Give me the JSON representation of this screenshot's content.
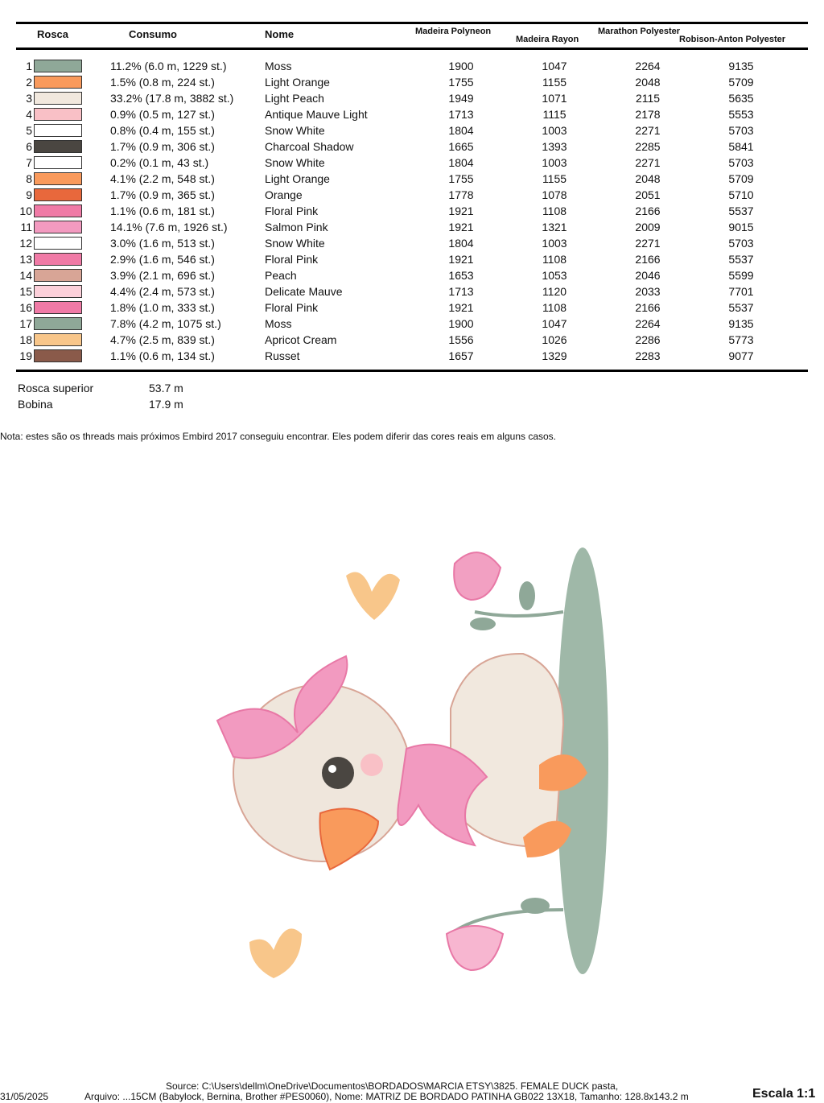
{
  "headers": {
    "rosca": "Rosca",
    "consumo": "Consumo",
    "nome": "Nome",
    "madeira_polyneon": "Madeira Polyneon",
    "madeira_rayon": "Madeira Rayon",
    "marathon": "Marathon Polyester",
    "robison": "Robison-Anton Polyester"
  },
  "rows": [
    {
      "n": "1",
      "color": "#8fa898",
      "consumo": "11.2% (6.0 m, 1229 st.)",
      "nome": "Moss",
      "mp": "1900",
      "mr": "1047",
      "ma": "2264",
      "ra": "9135"
    },
    {
      "n": "2",
      "color": "#f99a5c",
      "consumo": "1.5% (0.8 m, 224 st.)",
      "nome": "Light Orange",
      "mp": "1755",
      "mr": "1155",
      "ma": "2048",
      "ra": "5709"
    },
    {
      "n": "3",
      "color": "#f1e8de",
      "consumo": "33.2% (17.8 m, 3882 st.)",
      "nome": "Light Peach",
      "mp": "1949",
      "mr": "1071",
      "ma": "2115",
      "ra": "5635"
    },
    {
      "n": "4",
      "color": "#f9c0c6",
      "consumo": "0.9% (0.5 m, 127 st.)",
      "nome": "Antique Mauve Light",
      "mp": "1713",
      "mr": "1115",
      "ma": "2178",
      "ra": "5553"
    },
    {
      "n": "5",
      "color": "#ffffff",
      "consumo": "0.8% (0.4 m, 155 st.)",
      "nome": "Snow White",
      "mp": "1804",
      "mr": "1003",
      "ma": "2271",
      "ra": "5703"
    },
    {
      "n": "6",
      "color": "#4a4641",
      "consumo": "1.7% (0.9 m, 306 st.)",
      "nome": "Charcoal Shadow",
      "mp": "1665",
      "mr": "1393",
      "ma": "2285",
      "ra": "5841"
    },
    {
      "n": "7",
      "color": "#ffffff",
      "consumo": "0.2% (0.1 m, 43 st.)",
      "nome": "Snow White",
      "mp": "1804",
      "mr": "1003",
      "ma": "2271",
      "ra": "5703"
    },
    {
      "n": "8",
      "color": "#f99a5c",
      "consumo": "4.1% (2.2 m, 548 st.)",
      "nome": "Light Orange",
      "mp": "1755",
      "mr": "1155",
      "ma": "2048",
      "ra": "5709"
    },
    {
      "n": "9",
      "color": "#e8683c",
      "consumo": "1.7% (0.9 m, 365 st.)",
      "nome": "Orange",
      "mp": "1778",
      "mr": "1078",
      "ma": "2051",
      "ra": "5710"
    },
    {
      "n": "10",
      "color": "#f07aa6",
      "consumo": "1.1% (0.6 m, 181 st.)",
      "nome": "Floral Pink",
      "mp": "1921",
      "mr": "1108",
      "ma": "2166",
      "ra": "5537"
    },
    {
      "n": "11",
      "color": "#f39ac0",
      "consumo": "14.1% (7.6 m, 1926 st.)",
      "nome": "Salmon Pink",
      "mp": "1921",
      "mr": "1321",
      "ma": "2009",
      "ra": "9015"
    },
    {
      "n": "12",
      "color": "#ffffff",
      "consumo": "3.0% (1.6 m, 513 st.)",
      "nome": "Snow White",
      "mp": "1804",
      "mr": "1003",
      "ma": "2271",
      "ra": "5703"
    },
    {
      "n": "13",
      "color": "#f07aa6",
      "consumo": "2.9% (1.6 m, 546 st.)",
      "nome": "Floral Pink",
      "mp": "1921",
      "mr": "1108",
      "ma": "2166",
      "ra": "5537"
    },
    {
      "n": "14",
      "color": "#d8a596",
      "consumo": "3.9% (2.1 m, 696 st.)",
      "nome": "Peach",
      "mp": "1653",
      "mr": "1053",
      "ma": "2046",
      "ra": "5599"
    },
    {
      "n": "15",
      "color": "#fcd0da",
      "consumo": "4.4% (2.4 m, 573 st.)",
      "nome": "Delicate Mauve",
      "mp": "1713",
      "mr": "1120",
      "ma": "2033",
      "ra": "7701"
    },
    {
      "n": "16",
      "color": "#f07aa6",
      "consumo": "1.8% (1.0 m, 333 st.)",
      "nome": "Floral Pink",
      "mp": "1921",
      "mr": "1108",
      "ma": "2166",
      "ra": "5537"
    },
    {
      "n": "17",
      "color": "#8fa898",
      "consumo": "7.8% (4.2 m, 1075 st.)",
      "nome": "Moss",
      "mp": "1900",
      "mr": "1047",
      "ma": "2264",
      "ra": "9135"
    },
    {
      "n": "18",
      "color": "#f8c68a",
      "consumo": "4.7% (2.5 m, 839 st.)",
      "nome": "Apricot Cream",
      "mp": "1556",
      "mr": "1026",
      "ma": "2286",
      "ra": "5773"
    },
    {
      "n": "19",
      "color": "#8a5a4a",
      "consumo": "1.1% (0.6 m, 134 st.)",
      "nome": "Russet",
      "mp": "1657",
      "mr": "1329",
      "ma": "2283",
      "ra": "9077"
    }
  ],
  "totals": {
    "top_label": "Rosca superior",
    "top_value": "53.7 m",
    "bobbin_label": "Bobina",
    "bobbin_value": "17.9 m"
  },
  "note": "Nota: estes são os threads mais próximos Embird 2017 conseguiu encontrar. Eles podem diferir das cores reais em alguns casos.",
  "footer": {
    "date": "31/05/2025",
    "source": "Source: C:\\Users\\dellm\\OneDrive\\Documentos\\BORDADOS\\MARCIA ETSY\\3825. FEMALE DUCK pasta,",
    "file": "Arquivo: ...15CM (Babylock, Bernina, Brother #PES0060), Nome: MATRIZ DE BORDADO PATINHA GB022 13X18, Tamanho: 128.8x143.2 m",
    "scale": "Escala 1:1"
  }
}
